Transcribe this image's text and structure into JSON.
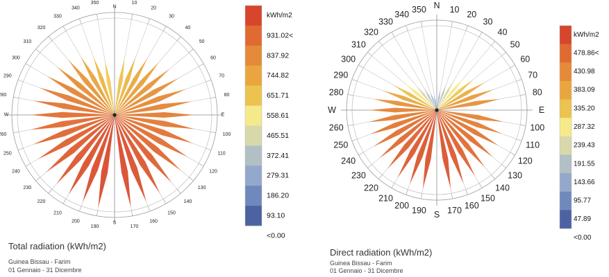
{
  "chart_data": [
    {
      "type": "radial",
      "title": "Total radiation (kWh/m2)",
      "location": "Guinea Bissau - Farim",
      "period": "01 Gennaio - 31 Dicembre",
      "unit": "kWh/m2",
      "cardinals": [
        "N",
        "E",
        "S",
        "W"
      ],
      "degree_labels": [
        "350",
        "340",
        "330",
        "320",
        "310",
        "300",
        "290",
        "280",
        "260",
        "250",
        "240",
        "230",
        "220",
        "210",
        "200",
        "190",
        "10",
        "20",
        "30",
        "40",
        "50",
        "60",
        "70",
        "80",
        "100",
        "110",
        "120",
        "130",
        "140",
        "150",
        "160",
        "170"
      ],
      "legend": {
        "max": 931.02,
        "labels": [
          "931.02<",
          "837.92",
          "744.82",
          "651.71",
          "558.61",
          "465.51",
          "372.41",
          "279.31",
          "186.20",
          "93.10",
          "<0.00"
        ],
        "colors": [
          "#d7452d",
          "#e06a32",
          "#e58a38",
          "#e9a63f",
          "#ecc250",
          "#f5e98a",
          "#d8d8ab",
          "#b2c0c6",
          "#94a8cc",
          "#7089bd",
          "#4d62a2"
        ]
      },
      "directions": [
        0,
        10,
        20,
        30,
        40,
        50,
        60,
        70,
        80,
        90,
        100,
        110,
        120,
        130,
        140,
        150,
        160,
        170,
        180,
        190,
        200,
        210,
        220,
        230,
        240,
        250,
        260,
        270,
        280,
        290,
        300,
        310,
        320,
        330,
        340,
        350
      ],
      "values": [
        0,
        560,
        600,
        640,
        670,
        700,
        720,
        740,
        760,
        780,
        790,
        810,
        820,
        840,
        860,
        880,
        900,
        910,
        0,
        915,
        905,
        895,
        880,
        870,
        860,
        845,
        830,
        820,
        800,
        780,
        760,
        730,
        700,
        660,
        600,
        540
      ]
    },
    {
      "type": "radial",
      "title": "Direct radiation (kWh/m2)",
      "location": "Guinea Bissau - Farim",
      "period": "01 Gennaio - 31 Dicembre",
      "unit": "kWh/m2",
      "cardinals": [
        "N",
        "E",
        "S",
        "W"
      ],
      "degree_labels": [
        "350",
        "340",
        "330",
        "320",
        "310",
        "300",
        "290",
        "280",
        "260",
        "250",
        "240",
        "230",
        "220",
        "210",
        "200",
        "190",
        "10",
        "20",
        "30",
        "40",
        "50",
        "60",
        "70",
        "80",
        "100",
        "110",
        "120",
        "130",
        "140",
        "150",
        "160",
        "170"
      ],
      "legend": {
        "max": 478.86,
        "labels": [
          "478.86<",
          "430.98",
          "383.09",
          "335.20",
          "287.32",
          "239.43",
          "191.55",
          "143.66",
          "95.77",
          "47.89",
          "<0.00"
        ],
        "colors": [
          "#d7452d",
          "#e06a32",
          "#e58a38",
          "#e9a63f",
          "#ecc250",
          "#f5e98a",
          "#d8d8ab",
          "#b2c0c6",
          "#94a8cc",
          "#7089bd",
          "#4d62a2"
        ]
      },
      "directions": [
        0,
        10,
        20,
        30,
        40,
        50,
        60,
        70,
        80,
        90,
        100,
        110,
        120,
        130,
        140,
        150,
        160,
        170,
        180,
        190,
        200,
        210,
        220,
        230,
        240,
        250,
        260,
        270,
        280,
        290,
        300,
        310,
        320,
        330,
        340,
        350
      ],
      "values": [
        0,
        120,
        160,
        200,
        240,
        280,
        320,
        350,
        370,
        0,
        390,
        400,
        410,
        420,
        430,
        440,
        450,
        460,
        0,
        460,
        455,
        450,
        440,
        430,
        420,
        410,
        400,
        390,
        370,
        330,
        290,
        240,
        190,
        150,
        110,
        90
      ]
    }
  ]
}
